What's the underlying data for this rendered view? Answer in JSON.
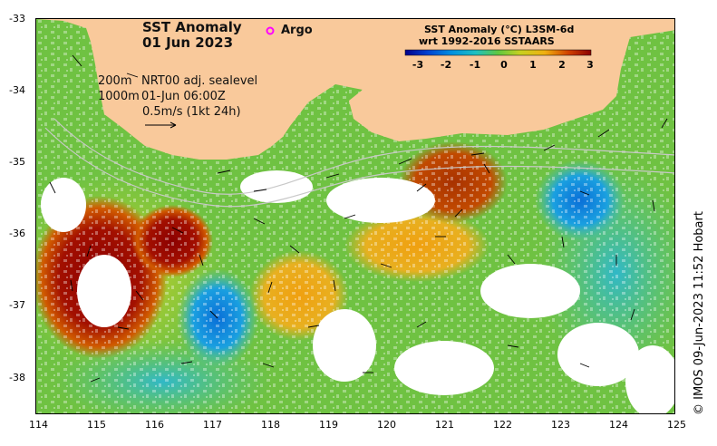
{
  "map": {
    "title": "SST Anomaly",
    "date": "01 Jun 2023",
    "legend_argo": "Argo",
    "contour_labels": [
      "200m",
      "1000m"
    ],
    "product_info": [
      "NRT00 adj. sealevel",
      "01-Jun 06:00Z"
    ],
    "vector_scale": "0.5m/s (1kt 24h)",
    "lon_ticks": [
      "114",
      "115",
      "116",
      "117",
      "118",
      "119",
      "120",
      "121",
      "122",
      "123",
      "124",
      "125"
    ],
    "lat_ticks": [
      "-33",
      "-34",
      "-35",
      "-36",
      "-37",
      "-38"
    ],
    "colorbar": {
      "title_line1": "SST Anomaly (°C) L3SM-6d",
      "title_line2": "wrt 1992-2016 SSTAARS",
      "ticks": [
        "-3",
        "-2",
        "-1",
        "0",
        "1",
        "2",
        "3"
      ]
    },
    "credit": "© IMOS 09-Jun-2023 11:52 Hobart",
    "colors": {
      "land": "#f9c99b",
      "argo": "#ff00ff",
      "anomaly_low": "#00008b",
      "anomaly_high": "#8b0000"
    }
  }
}
